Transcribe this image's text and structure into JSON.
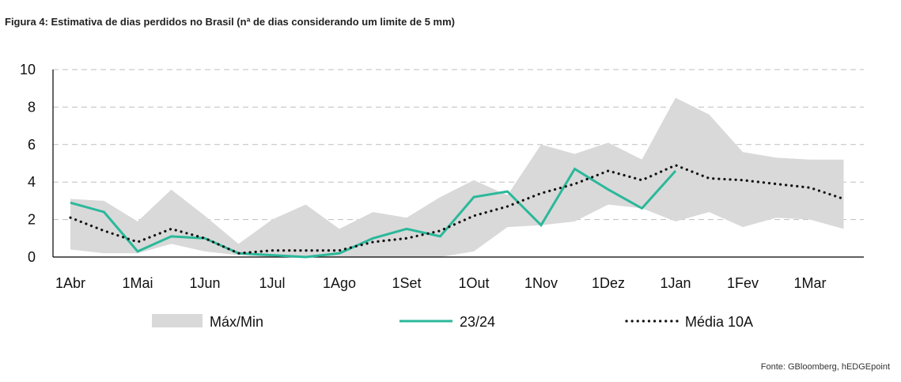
{
  "title": "Figura 4: Estimativa de dias perdidos no Brasil (nª de dias considerando um limite de 5 mm)",
  "source": "Fonte: GBloomberg, hEDGEpoint",
  "colors": {
    "band": "#d9d9d9",
    "line": "#2bb89a",
    "avg": "#111111",
    "grid": "#bfbfbf",
    "axis": "#000000"
  },
  "chart_data": {
    "type": "line",
    "x_ticks": [
      "1Abr",
      "1Mai",
      "1Jun",
      "1Jul",
      "1Ago",
      "1Set",
      "1Out",
      "1Nov",
      "1Dez",
      "1Jan",
      "1Fev",
      "1Mar"
    ],
    "ylim": [
      0,
      10
    ],
    "y_ticks": [
      0,
      2,
      4,
      6,
      8,
      10
    ],
    "grid": true,
    "legend_position": "bottom",
    "x": [
      0,
      0.5,
      1,
      1.5,
      2,
      2.5,
      3,
      3.5,
      4,
      4.5,
      5,
      5.5,
      6,
      6.5,
      7,
      7.5,
      8,
      8.5,
      9,
      9.5,
      10,
      10.5,
      11,
      11.5
    ],
    "series": [
      {
        "name": "Máx/Min",
        "kind": "band",
        "max": [
          3.1,
          3.0,
          1.9,
          3.6,
          2.2,
          0.7,
          2.0,
          2.8,
          1.5,
          2.4,
          2.1,
          3.2,
          4.1,
          3.3,
          6.0,
          5.5,
          6.1,
          5.2,
          8.5,
          7.6,
          5.6,
          5.3,
          5.2,
          5.2
        ],
        "min": [
          0.4,
          0.2,
          0.2,
          0.7,
          0.3,
          0.1,
          0.0,
          0.0,
          0.0,
          0.0,
          0.0,
          0.0,
          0.3,
          1.6,
          1.7,
          1.9,
          2.8,
          2.6,
          1.9,
          2.4,
          1.6,
          2.1,
          2.0,
          1.5
        ]
      },
      {
        "name": "23/24",
        "kind": "line",
        "values": [
          2.9,
          2.4,
          0.3,
          1.1,
          1.0,
          0.2,
          0.1,
          0.0,
          0.2,
          1.0,
          1.5,
          1.1,
          3.2,
          3.5,
          1.7,
          4.7,
          3.6,
          2.6,
          4.6,
          null,
          null,
          null,
          null,
          null
        ]
      },
      {
        "name": "Média 10A",
        "kind": "dotted",
        "values": [
          2.1,
          1.4,
          0.8,
          1.5,
          1.0,
          0.2,
          0.35,
          0.35,
          0.35,
          0.8,
          1.0,
          1.4,
          2.2,
          2.7,
          3.4,
          3.9,
          4.6,
          4.1,
          4.9,
          4.2,
          4.1,
          3.9,
          3.7,
          3.1
        ]
      }
    ]
  }
}
